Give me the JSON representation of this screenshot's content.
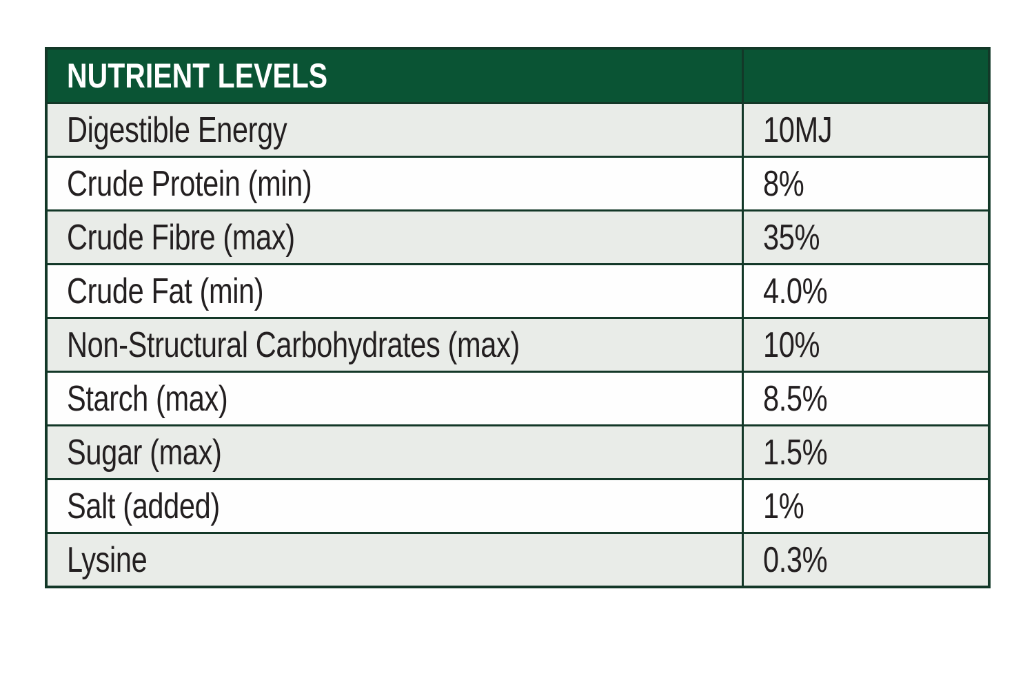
{
  "table": {
    "header": "NUTRIENT LEVELS",
    "rows": [
      {
        "label": "Digestible Energy",
        "value": "10MJ"
      },
      {
        "label": "Crude Protein (min)",
        "value": "8%"
      },
      {
        "label": "Crude Fibre (max)",
        "value": "35%"
      },
      {
        "label": "Crude Fat (min)",
        "value": "4.0%"
      },
      {
        "label": "Non-Structural Carbohydrates (max)",
        "value": "10%"
      },
      {
        "label": "Starch (max)",
        "value": "8.5%"
      },
      {
        "label": "Sugar (max)",
        "value": "1.5%"
      },
      {
        "label": "Salt (added)",
        "value": "1%"
      },
      {
        "label": "Lysine",
        "value": "0.3%"
      }
    ],
    "colors": {
      "header_bg": "#0a5434",
      "header_text": "#ffffff",
      "border": "#133828",
      "row_bg": "#fefefe",
      "row_alt_bg": "#e9ece8",
      "body_text": "#231f20"
    }
  }
}
